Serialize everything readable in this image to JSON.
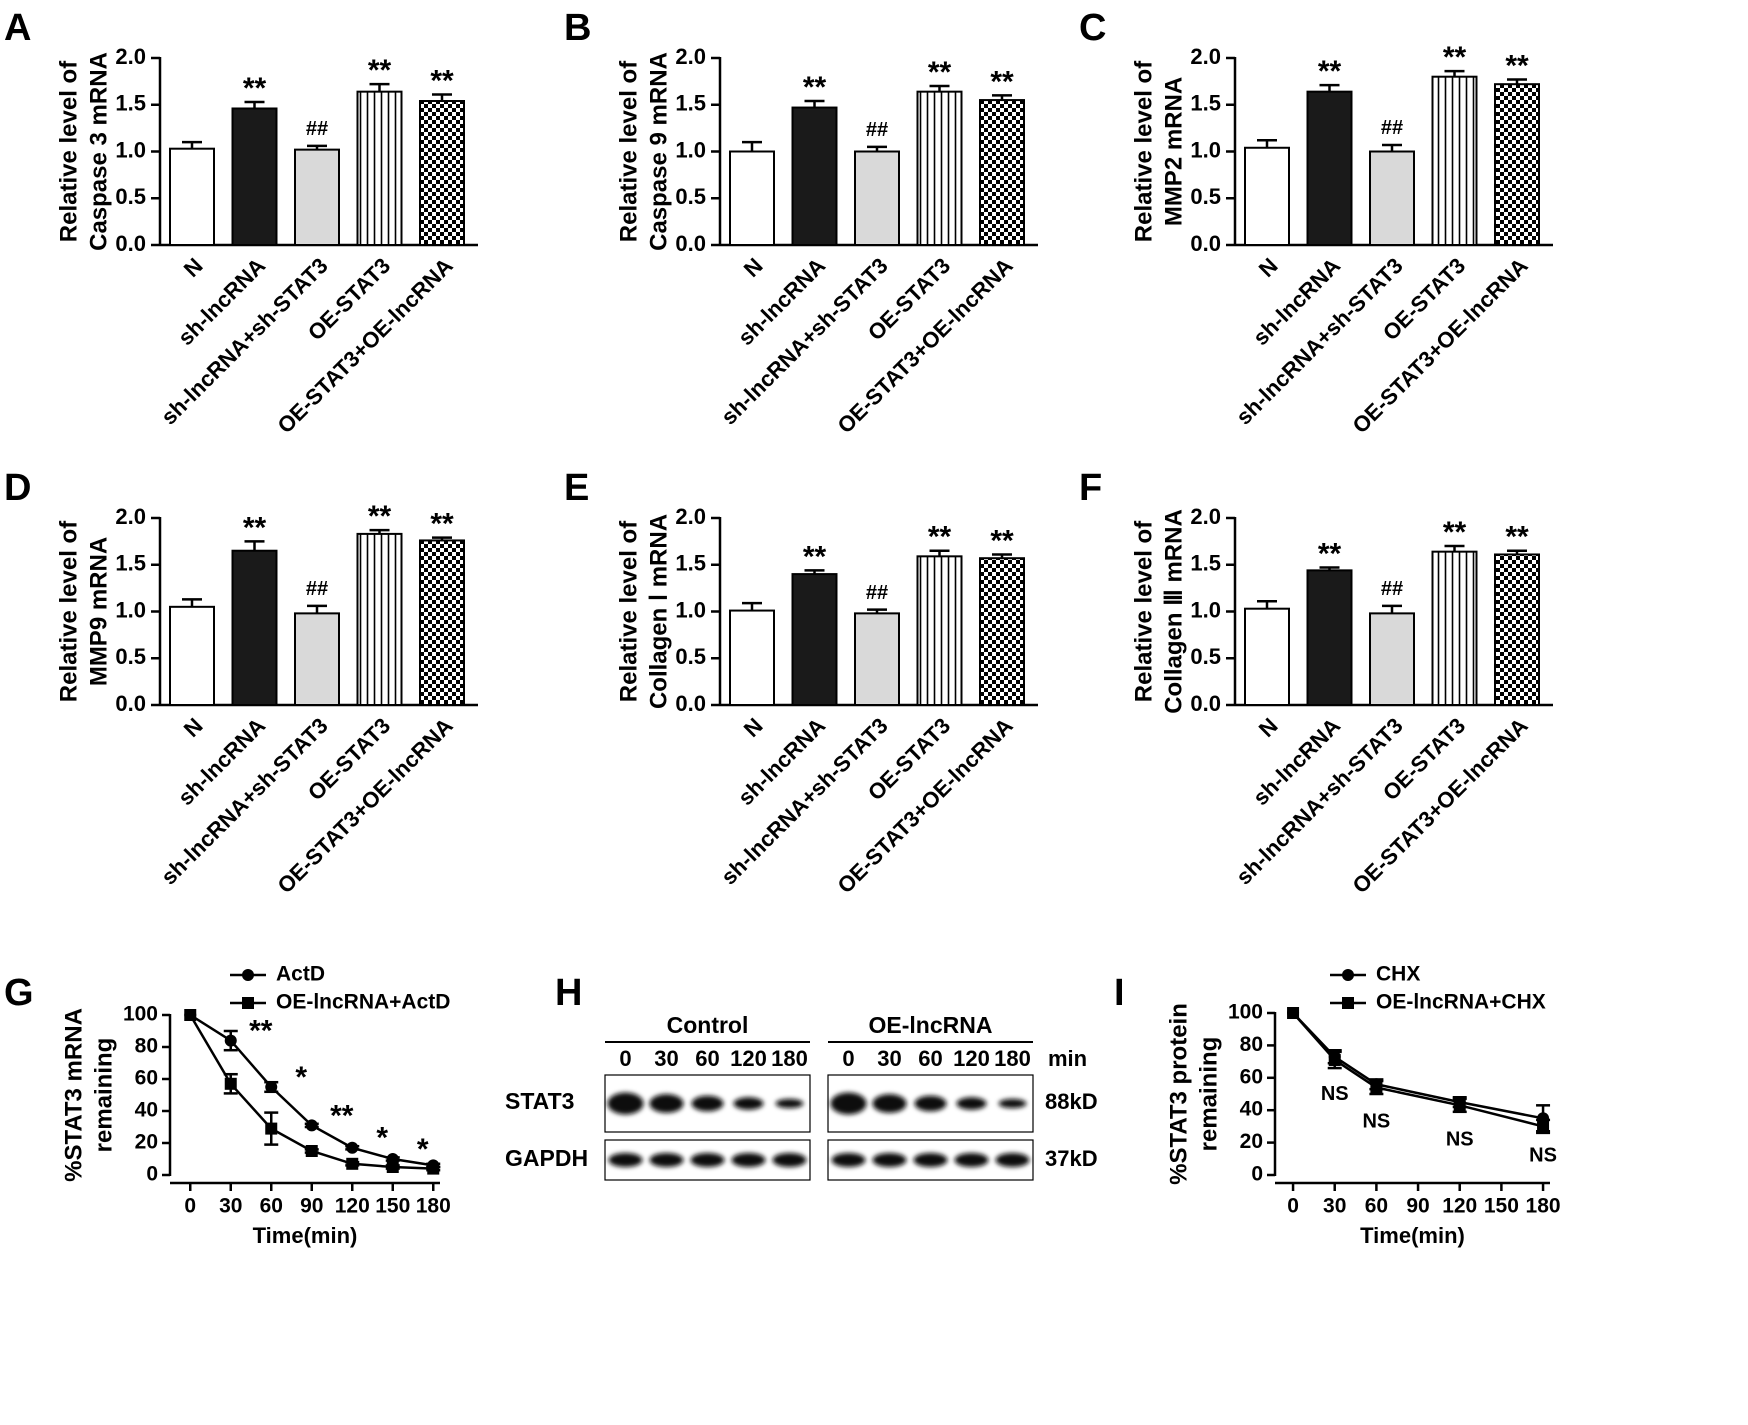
{
  "chart_data": [
    {
      "type": "bar",
      "panel": "A",
      "ylabel": [
        "Relative level of",
        "Caspase 3 mRNA"
      ],
      "categories": [
        "N",
        "sh-lncRNA",
        "sh-lncRNA+sh-STAT3",
        "OE-STAT3",
        "OE-STAT3+OE-lncRNA"
      ],
      "values": [
        1.03,
        1.46,
        1.02,
        1.64,
        1.54
      ],
      "errors": [
        0.07,
        0.07,
        0.04,
        0.08,
        0.07
      ],
      "annotations": [
        null,
        "**",
        "##",
        "**",
        "**"
      ],
      "fills": [
        "white",
        "black",
        "lightgray",
        "vertical-stripes",
        "checkerboard"
      ],
      "ylim": [
        0,
        2
      ],
      "yticks": [
        {
          "value": 0,
          "label": "0.0"
        },
        {
          "value": 0.5,
          "label": "0.5"
        },
        {
          "value": 1,
          "label": "1.0"
        },
        {
          "value": 1.5,
          "label": "1.5"
        },
        {
          "value": 2,
          "label": "2.0"
        }
      ]
    },
    {
      "type": "bar",
      "panel": "B",
      "ylabel": [
        "Relative level of",
        "Caspase 9 mRNA"
      ],
      "categories": [
        "N",
        "sh-lncRNA",
        "sh-lncRNA+sh-STAT3",
        "OE-STAT3",
        "OE-STAT3+OE-lncRNA"
      ],
      "values": [
        1.0,
        1.47,
        1.0,
        1.64,
        1.55
      ],
      "errors": [
        0.1,
        0.07,
        0.05,
        0.06,
        0.05
      ],
      "annotations": [
        null,
        "**",
        "##",
        "**",
        "**"
      ],
      "fills": [
        "white",
        "black",
        "lightgray",
        "vertical-stripes",
        "checkerboard"
      ],
      "ylim": [
        0,
        2
      ],
      "yticks": [
        {
          "value": 0,
          "label": "0.0"
        },
        {
          "value": 0.5,
          "label": "0.5"
        },
        {
          "value": 1,
          "label": "1.0"
        },
        {
          "value": 1.5,
          "label": "1.5"
        },
        {
          "value": 2,
          "label": "2.0"
        }
      ]
    },
    {
      "type": "bar",
      "panel": "C",
      "ylabel": [
        "Relative level of",
        "MMP2 mRNA"
      ],
      "categories": [
        "N",
        "sh-lncRNA",
        "sh-lncRNA+sh-STAT3",
        "OE-STAT3",
        "OE-STAT3+OE-lncRNA"
      ],
      "values": [
        1.04,
        1.64,
        1.0,
        1.8,
        1.72
      ],
      "errors": [
        0.08,
        0.07,
        0.07,
        0.06,
        0.05
      ],
      "annotations": [
        null,
        "**",
        "##",
        "**",
        "**"
      ],
      "fills": [
        "white",
        "black",
        "lightgray",
        "vertical-stripes",
        "checkerboard"
      ],
      "ylim": [
        0,
        2
      ],
      "yticks": [
        {
          "value": 0,
          "label": "0.0"
        },
        {
          "value": 0.5,
          "label": "0.5"
        },
        {
          "value": 1,
          "label": "1.0"
        },
        {
          "value": 1.5,
          "label": "1.5"
        },
        {
          "value": 2,
          "label": "2.0"
        }
      ]
    },
    {
      "type": "bar",
      "panel": "D",
      "ylabel": [
        "Relative level of",
        "MMP9 mRNA"
      ],
      "categories": [
        "N",
        "sh-lncRNA",
        "sh-lncRNA+sh-STAT3",
        "OE-STAT3",
        "OE-STAT3+OE-lncRNA"
      ],
      "values": [
        1.05,
        1.65,
        0.98,
        1.83,
        1.76
      ],
      "errors": [
        0.08,
        0.1,
        0.08,
        0.04,
        0.03
      ],
      "annotations": [
        null,
        "**",
        "##",
        "**",
        "**"
      ],
      "fills": [
        "white",
        "black",
        "lightgray",
        "vertical-stripes",
        "checkerboard"
      ],
      "ylim": [
        0,
        2
      ],
      "yticks": [
        {
          "value": 0,
          "label": "0.0"
        },
        {
          "value": 0.5,
          "label": "0.5"
        },
        {
          "value": 1,
          "label": "1.0"
        },
        {
          "value": 1.5,
          "label": "1.5"
        },
        {
          "value": 2,
          "label": "2.0"
        }
      ]
    },
    {
      "type": "bar",
      "panel": "E",
      "ylabel": [
        "Relative level of",
        "Collagen Ⅰ mRNA"
      ],
      "categories": [
        "N",
        "sh-lncRNA",
        "sh-lncRNA+sh-STAT3",
        "OE-STAT3",
        "OE-STAT3+OE-lncRNA"
      ],
      "values": [
        1.01,
        1.4,
        0.98,
        1.59,
        1.57
      ],
      "errors": [
        0.08,
        0.04,
        0.04,
        0.06,
        0.04
      ],
      "annotations": [
        null,
        "**",
        "##",
        "**",
        "**"
      ],
      "fills": [
        "white",
        "black",
        "lightgray",
        "vertical-stripes",
        "checkerboard"
      ],
      "ylim": [
        0,
        2
      ],
      "yticks": [
        {
          "value": 0,
          "label": "0.0"
        },
        {
          "value": 0.5,
          "label": "0.5"
        },
        {
          "value": 1,
          "label": "1.0"
        },
        {
          "value": 1.5,
          "label": "1.5"
        },
        {
          "value": 2,
          "label": "2.0"
        }
      ]
    },
    {
      "type": "bar",
      "panel": "F",
      "ylabel": [
        "Relative level of",
        "Collagen Ⅲ mRNA"
      ],
      "categories": [
        "N",
        "sh-lncRNA",
        "sh-lncRNA+sh-STAT3",
        "OE-STAT3",
        "OE-STAT3+OE-lncRNA"
      ],
      "values": [
        1.03,
        1.44,
        0.98,
        1.64,
        1.61
      ],
      "errors": [
        0.08,
        0.03,
        0.08,
        0.06,
        0.04
      ],
      "annotations": [
        null,
        "**",
        "##",
        "**",
        "**"
      ],
      "fills": [
        "white",
        "black",
        "lightgray",
        "vertical-stripes",
        "checkerboard"
      ],
      "ylim": [
        0,
        2
      ],
      "yticks": [
        {
          "value": 0,
          "label": "0.0"
        },
        {
          "value": 0.5,
          "label": "0.5"
        },
        {
          "value": 1,
          "label": "1.0"
        },
        {
          "value": 1.5,
          "label": "1.5"
        },
        {
          "value": 2,
          "label": "2.0"
        }
      ]
    },
    {
      "type": "line",
      "panel": "G",
      "ylabel": [
        "%STAT3 mRNA",
        "remaining"
      ],
      "xlabel": "Time(min)",
      "x": [
        0,
        30,
        60,
        90,
        120,
        150,
        180
      ],
      "series": [
        {
          "name": "ActD",
          "color": "#000000",
          "marker": "circle",
          "values": [
            100,
            84,
            55,
            31,
            17,
            10,
            6
          ],
          "errors": [
            0,
            6,
            3,
            1,
            1,
            1,
            1
          ]
        },
        {
          "name": "OE-lncRNA+ActD",
          "color": "#000000",
          "marker": "square",
          "values": [
            100,
            57,
            29,
            15,
            7,
            5,
            4
          ],
          "errors": [
            0,
            6,
            10,
            1,
            1,
            1,
            1
          ]
        }
      ],
      "annotations": [
        null,
        "**",
        "*",
        "**",
        "*",
        "*",
        null
      ],
      "legend": "top-left",
      "xlim": [
        -15,
        185
      ],
      "xticks": [
        0,
        30,
        60,
        90,
        120,
        150,
        180
      ],
      "ylim": [
        0,
        100
      ],
      "yticks": [
        0,
        20,
        40,
        60,
        80,
        100
      ]
    },
    {
      "type": "line",
      "panel": "I",
      "ylabel": [
        "%STAT3 protein",
        "remaining"
      ],
      "xlabel": "Time(min)",
      "x": [
        0,
        30,
        60,
        120,
        180
      ],
      "series": [
        {
          "name": "CHX",
          "color": "#000000",
          "marker": "circle",
          "values": [
            100,
            73,
            56,
            45,
            35
          ],
          "errors": [
            0,
            4,
            3,
            3,
            8
          ]
        },
        {
          "name": "OE-lncRNA+CHX",
          "color": "#000000",
          "marker": "square",
          "values": [
            100,
            71,
            54,
            43,
            30
          ],
          "errors": [
            0,
            5,
            4,
            4,
            4
          ]
        }
      ],
      "annotations": [
        null,
        "NS",
        "NS",
        "NS",
        "NS"
      ],
      "legend": "top-right",
      "xlim": [
        -13,
        185
      ],
      "xticks": [
        0,
        30,
        60,
        90,
        120,
        150,
        180
      ],
      "ylim": [
        0,
        100
      ],
      "yticks": [
        0,
        20,
        40,
        60,
        80,
        100
      ]
    }
  ],
  "blot": {
    "panel": "H",
    "groups": [
      "Control",
      "OE-lncRNA"
    ],
    "lanes": [
      "0",
      "30",
      "60",
      "120",
      "180"
    ],
    "unit": "min",
    "rows": [
      "STAT3",
      "GAPDH"
    ],
    "sizes": [
      "88kD",
      "37kD"
    ]
  }
}
